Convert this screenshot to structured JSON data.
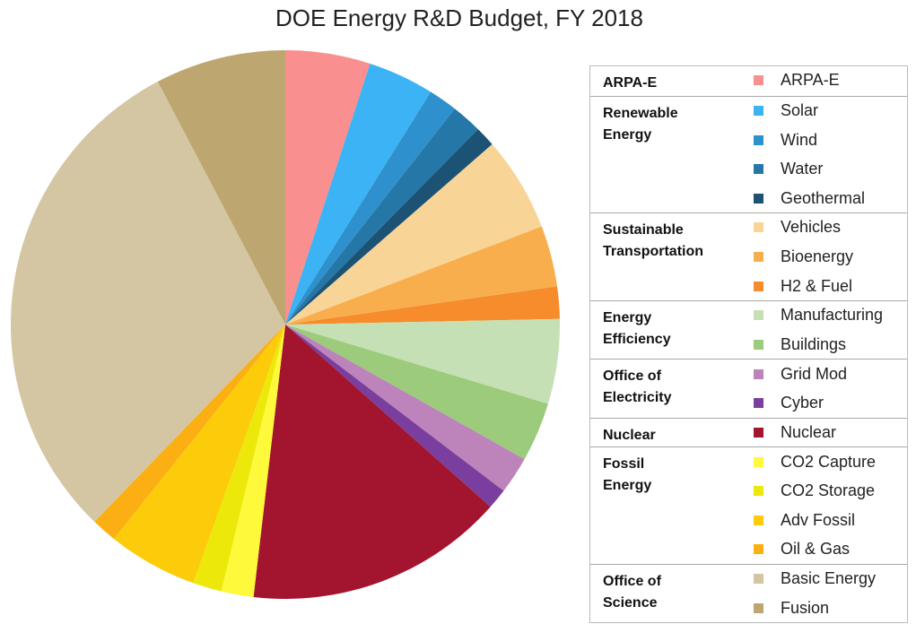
{
  "chart_data": {
    "type": "pie",
    "title": "DOE Energy R&D Budget, FY 2018",
    "groups": [
      {
        "label": "ARPA-E",
        "categories": [
          "ARPA-E"
        ],
        "values": [
          5
        ],
        "colors": [
          "#f98f8f"
        ]
      },
      {
        "label": "Renewable Energy",
        "categories": [
          "Solar",
          "Wind",
          "Water",
          "Geothermal"
        ],
        "values": [
          3.9,
          1.7,
          1.8,
          1.2
        ],
        "colors": [
          "#3bb3f5",
          "#2e90cc",
          "#2577a8",
          "#1c5274"
        ]
      },
      {
        "label": "Sustainable Transportation",
        "categories": [
          "Vehicles",
          "Bioenergy",
          "H2 & Fuel"
        ],
        "values": [
          5.6,
          3.6,
          1.9
        ],
        "colors": [
          "#f8d496",
          "#f9ae4e",
          "#f68c2c"
        ]
      },
      {
        "label": "Energy Efficiency",
        "categories": [
          "Manufacturing",
          "Buildings"
        ],
        "values": [
          5,
          3.5
        ],
        "colors": [
          "#c6e0b5",
          "#9ccb7b"
        ]
      },
      {
        "label": "Office of Electricity",
        "categories": [
          "Grid Mod",
          "Cyber"
        ],
        "values": [
          2.2,
          1.2
        ],
        "colors": [
          "#bd84bb",
          "#7a3f9e"
        ]
      },
      {
        "label": "Nuclear",
        "categories": [
          "Nuclear"
        ],
        "values": [
          15.3
        ],
        "colors": [
          "#a3142f"
        ]
      },
      {
        "label": "Fossil Energy",
        "categories": [
          "CO2 Capture",
          "CO2 Storage",
          "Adv Fossil",
          "Oil & Gas"
        ],
        "values": [
          1.9,
          1.7,
          5.3,
          1.5
        ],
        "colors": [
          "#fef93a",
          "#ece90a",
          "#fccb0a",
          "#fbaf12"
        ]
      },
      {
        "label": "Office of Science",
        "categories": [
          "Basic Energy",
          "Fusion"
        ],
        "values": [
          30.1,
          7.7
        ],
        "colors": [
          "#d4c6a3",
          "#bea670"
        ]
      }
    ]
  }
}
